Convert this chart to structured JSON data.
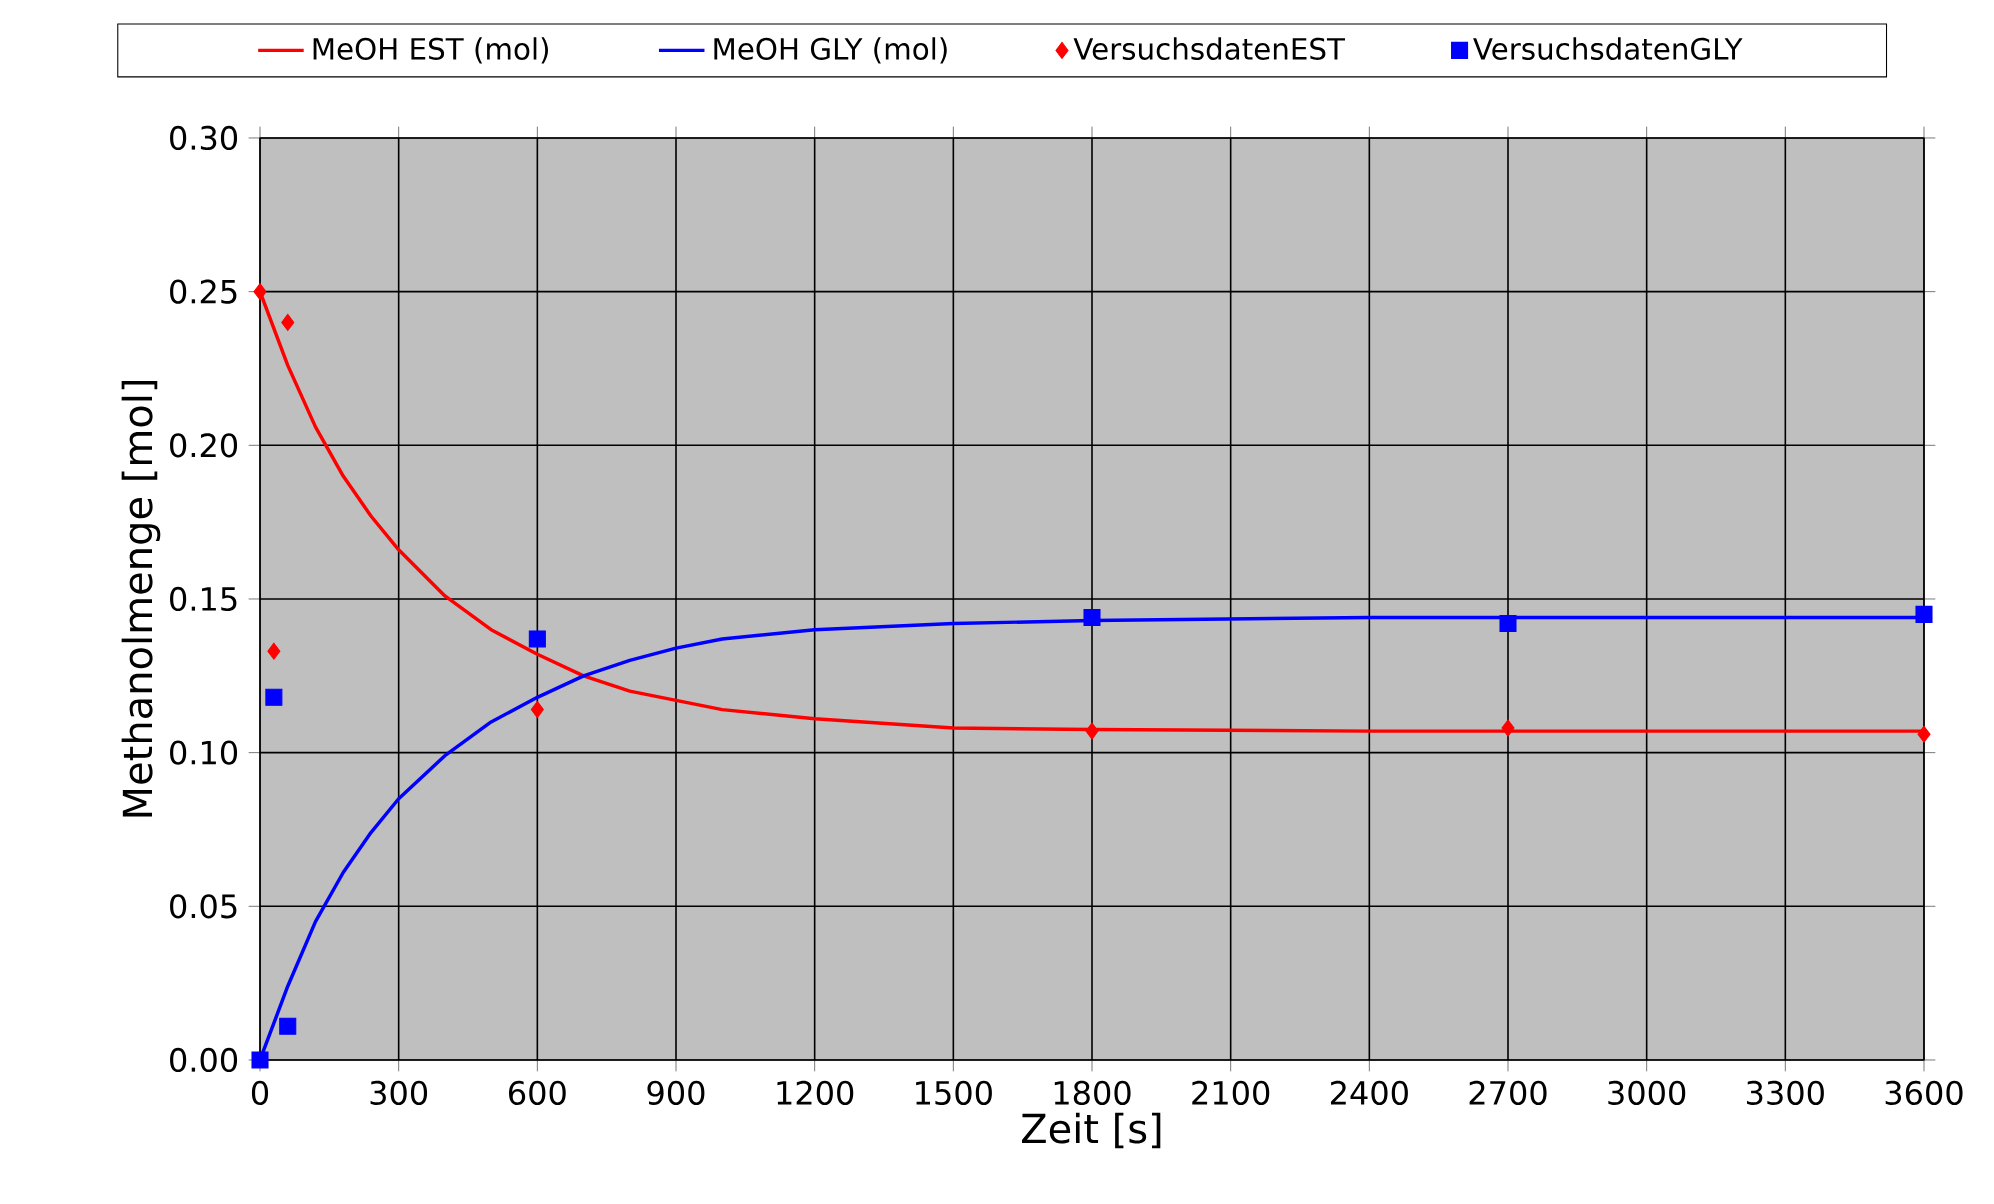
{
  "chart_data": {
    "type": "line",
    "xlabel": "Zeit [s]",
    "ylabel": "Methanolmenge [mol]",
    "xlim": [
      0,
      3600
    ],
    "ylim": [
      0,
      0.3
    ],
    "xticks": [
      0,
      300,
      600,
      900,
      1200,
      1500,
      1800,
      2100,
      2400,
      2700,
      3000,
      3300,
      3600
    ],
    "yticks": [
      {
        "value": 0,
        "label": "0.00"
      },
      {
        "value": 0.05,
        "label": "0.05"
      },
      {
        "value": 0.1,
        "label": "0.10"
      },
      {
        "value": 0.15,
        "label": "0.15"
      },
      {
        "value": 0.2,
        "label": "0.20"
      },
      {
        "value": 0.25,
        "label": "0.25"
      },
      {
        "value": 0.3,
        "label": "0.30"
      }
    ],
    "grid": true,
    "legend": "top",
    "series": [
      {
        "name": "MeOH EST (mol)",
        "color": "#ff0000",
        "marker": "none",
        "x": [
          0,
          60,
          120,
          180,
          240,
          300,
          400,
          500,
          600,
          700,
          800,
          900,
          1000,
          1200,
          1500,
          1800,
          2400,
          3000,
          3600
        ],
        "values": [
          0.25,
          0.226,
          0.206,
          0.19,
          0.177,
          0.166,
          0.151,
          0.14,
          0.132,
          0.125,
          0.12,
          0.117,
          0.114,
          0.111,
          0.108,
          0.1075,
          0.107,
          0.107,
          0.107
        ]
      },
      {
        "name": "MeOH GLY (mol)",
        "color": "#0000ff",
        "marker": "none",
        "x": [
          0,
          60,
          120,
          180,
          240,
          300,
          400,
          500,
          600,
          700,
          800,
          900,
          1000,
          1200,
          1500,
          1800,
          2400,
          3000,
          3600
        ],
        "values": [
          0,
          0.024,
          0.045,
          0.061,
          0.074,
          0.085,
          0.099,
          0.11,
          0.118,
          0.125,
          0.13,
          0.134,
          0.137,
          0.14,
          0.142,
          0.143,
          0.144,
          0.144,
          0.144
        ]
      },
      {
        "name": "VersuchsdatenEST",
        "type": "scatter",
        "color": "#ff0000",
        "marker": "diamond",
        "x": [
          0,
          30,
          60,
          600,
          1800,
          2700,
          3600
        ],
        "values": [
          0.25,
          0.133,
          0.24,
          0.114,
          0.107,
          0.108,
          0.106
        ]
      },
      {
        "name": "VersuchsdatenGLY",
        "type": "scatter",
        "color": "#0000ff",
        "marker": "square",
        "x": [
          0,
          30,
          60,
          600,
          1800,
          2700,
          3600
        ],
        "values": [
          0,
          0.118,
          0.011,
          0.137,
          0.144,
          0.142,
          0.145
        ]
      }
    ]
  }
}
